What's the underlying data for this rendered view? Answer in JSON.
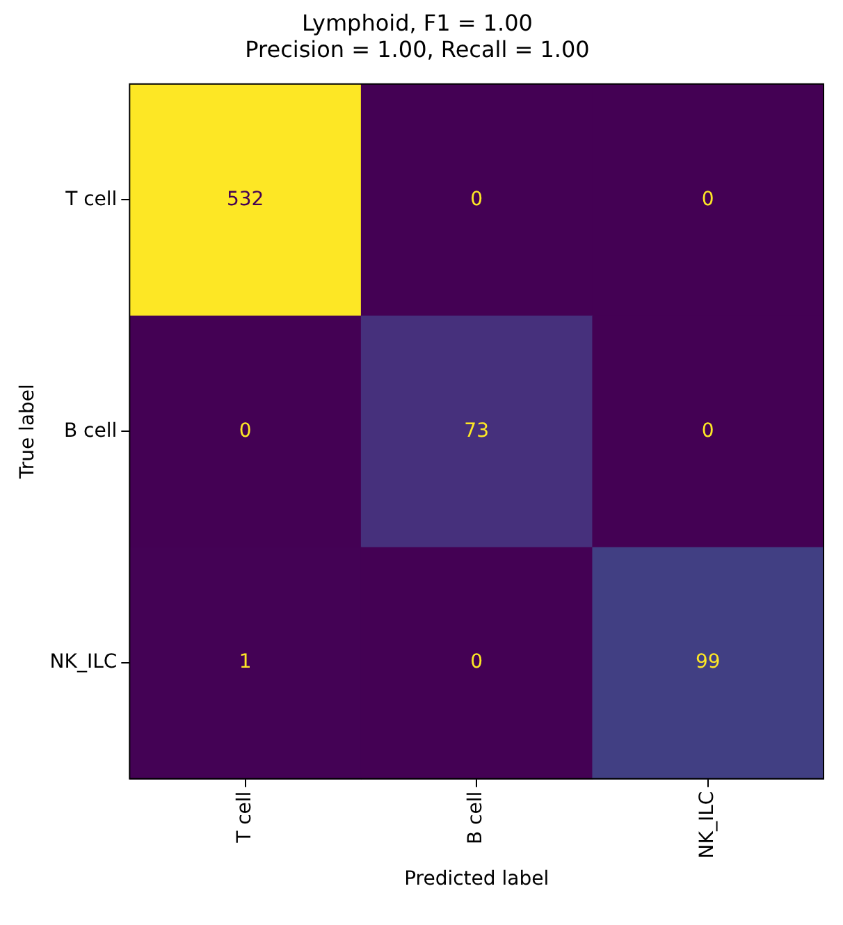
{
  "chart_data": {
    "type": "heatmap",
    "title": "Lymphoid, F1 = 1.00\nPrecision = 1.00, Recall = 1.00",
    "xlabel": "Predicted label",
    "ylabel": "True label",
    "categories": [
      "T cell",
      "B cell",
      "NK_ILC"
    ],
    "y_categories": [
      "T cell",
      "B cell",
      "NK_ILC"
    ],
    "cells": [
      [
        532,
        0,
        0
      ],
      [
        0,
        73,
        0
      ],
      [
        1,
        0,
        99
      ]
    ],
    "data_labels": true
  }
}
